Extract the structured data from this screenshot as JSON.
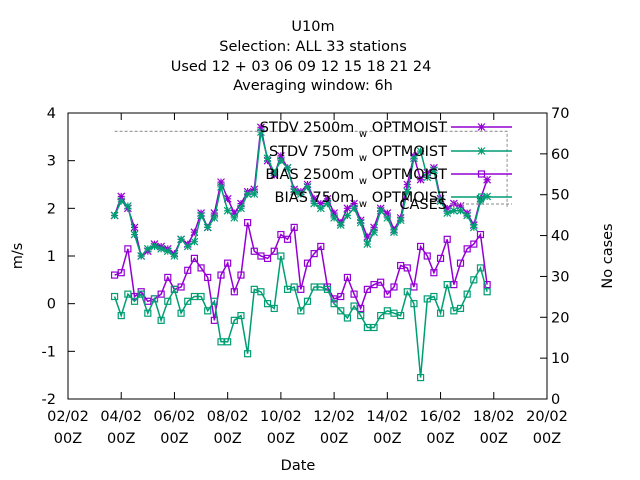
{
  "title_lines": [
    "U10m",
    "Selection: ALL      33 stations",
    "Used  12 + 03 06 09 12 15 18 21 24",
    "Averaging window:  6h"
  ],
  "chart_data": {
    "type": "line",
    "xlabel": "Date",
    "ylabel": "m/s",
    "y2label": "No cases",
    "ylim": [
      -2,
      4
    ],
    "y2lim": [
      0,
      70
    ],
    "xlim": [
      0,
      18
    ],
    "x_ticks": [
      {
        "x": 0,
        "l1": "02/02",
        "l2": "00Z"
      },
      {
        "x": 2,
        "l1": "04/02",
        "l2": "00Z"
      },
      {
        "x": 4,
        "l1": "06/02",
        "l2": "00Z"
      },
      {
        "x": 6,
        "l1": "08/02",
        "l2": "00Z"
      },
      {
        "x": 8,
        "l1": "10/02",
        "l2": "00Z"
      },
      {
        "x": 10,
        "l1": "12/02",
        "l2": "00Z"
      },
      {
        "x": 12,
        "l1": "14/02",
        "l2": "00Z"
      },
      {
        "x": 14,
        "l1": "16/02",
        "l2": "00Z"
      },
      {
        "x": 16,
        "l1": "18/02",
        "l2": "00Z"
      },
      {
        "x": 18,
        "l1": "20/02",
        "l2": "00Z"
      }
    ],
    "y_ticks": [
      "4",
      "3",
      "2",
      "1",
      "0",
      "-1",
      "-2"
    ],
    "y_tick_values": [
      4,
      3,
      2,
      1,
      0,
      -1,
      -2
    ],
    "y2_ticks": [
      "70",
      "60",
      "50",
      "40",
      "30",
      "20",
      "10",
      "0"
    ],
    "y2_tick_values": [
      70,
      60,
      50,
      40,
      30,
      20,
      10,
      0
    ],
    "x_start": 1.75,
    "x_step": 0.25,
    "series": [
      {
        "name": "STDV 2500m",
        "sub": "w",
        "name2": "OPTMOIST",
        "color": "#9400d3",
        "marker": "star",
        "axis": "y",
        "values": [
          1.85,
          2.25,
          2.0,
          1.6,
          1.0,
          1.1,
          1.25,
          1.2,
          1.15,
          1.05,
          1.35,
          1.25,
          1.5,
          1.9,
          1.6,
          1.9,
          2.55,
          2.2,
          1.9,
          2.1,
          2.35,
          2.4,
          3.7,
          3.0,
          2.7,
          3.1,
          2.85,
          2.4,
          2.35,
          2.5,
          2.2,
          2.1,
          2.2,
          1.9,
          1.7,
          2.0,
          2.1,
          1.75,
          1.4,
          1.6,
          2.0,
          1.9,
          1.55,
          1.8,
          2.5,
          3.1,
          2.6,
          2.75,
          2.85,
          2.2,
          2.0,
          2.1,
          2.05,
          1.9,
          1.65,
          2.2,
          2.6
        ]
      },
      {
        "name": "STDV 750m",
        "sub": "w",
        "name2": "OPTMOIST",
        "color": "#009e73",
        "marker": "star",
        "axis": "y",
        "values": [
          1.85,
          2.15,
          2.05,
          1.45,
          1.0,
          1.15,
          1.2,
          1.15,
          1.1,
          1.0,
          1.35,
          1.2,
          1.3,
          1.85,
          1.6,
          1.8,
          2.45,
          1.95,
          1.8,
          2.0,
          2.3,
          2.3,
          3.6,
          3.05,
          2.75,
          3.0,
          2.85,
          2.35,
          2.3,
          2.45,
          2.1,
          2.0,
          2.1,
          1.8,
          1.65,
          1.85,
          2.0,
          1.7,
          1.25,
          1.5,
          1.95,
          1.8,
          1.5,
          1.75,
          2.35,
          3.05,
          3.2,
          2.65,
          2.8,
          2.15,
          1.9,
          1.95,
          1.95,
          1.85,
          1.6,
          2.15,
          2.25
        ]
      },
      {
        "name": "BIAS 2500m",
        "sub": "w",
        "name2": "OPTMOIST",
        "color": "#9400d3",
        "marker": "square",
        "axis": "y",
        "values": [
          0.6,
          0.65,
          1.15,
          0.15,
          0.25,
          0.05,
          0.1,
          0.2,
          0.55,
          0.3,
          0.35,
          0.7,
          0.95,
          0.75,
          0.55,
          -0.35,
          0.6,
          0.85,
          0.25,
          0.6,
          1.7,
          1.1,
          1.0,
          0.95,
          1.1,
          1.45,
          1.35,
          1.6,
          0.3,
          0.85,
          1.05,
          1.2,
          0.35,
          0.1,
          0.15,
          0.55,
          0.2,
          -0.1,
          0.3,
          0.4,
          0.45,
          0.2,
          0.35,
          0.8,
          0.75,
          0.35,
          1.2,
          1.0,
          0.65,
          0.95,
          1.35,
          0.4,
          0.85,
          1.15,
          1.25,
          1.45,
          0.4
        ]
      },
      {
        "name": "BIAS 750m",
        "sub": "w",
        "name2": "OPTMOIST",
        "color": "#009e73",
        "marker": "square",
        "axis": "y",
        "values": [
          0.15,
          -0.25,
          0.2,
          0.05,
          0.2,
          -0.2,
          0.1,
          -0.35,
          0.05,
          0.3,
          -0.2,
          0.05,
          0.15,
          0.15,
          -0.15,
          0.05,
          -0.8,
          -0.8,
          -0.35,
          -0.25,
          -1.05,
          0.3,
          0.25,
          0.0,
          -0.1,
          1.0,
          0.3,
          0.35,
          -0.15,
          0.05,
          0.35,
          0.35,
          0.3,
          0.0,
          -0.15,
          -0.3,
          -0.05,
          -0.25,
          -0.5,
          -0.5,
          -0.25,
          -0.15,
          -0.2,
          -0.25,
          0.25,
          0.0,
          -1.55,
          0.1,
          0.15,
          -0.2,
          0.4,
          -0.15,
          -0.1,
          0.2,
          0.5,
          0.75,
          0.25
        ]
      },
      {
        "name": "CASES",
        "color": "#a0a0a0",
        "marker": "none",
        "dash": true,
        "axis": "y2",
        "values_x": [
          1.75,
          16.5,
          16.5
        ],
        "values": [
          65.5,
          65.5,
          46.5
        ]
      }
    ]
  }
}
